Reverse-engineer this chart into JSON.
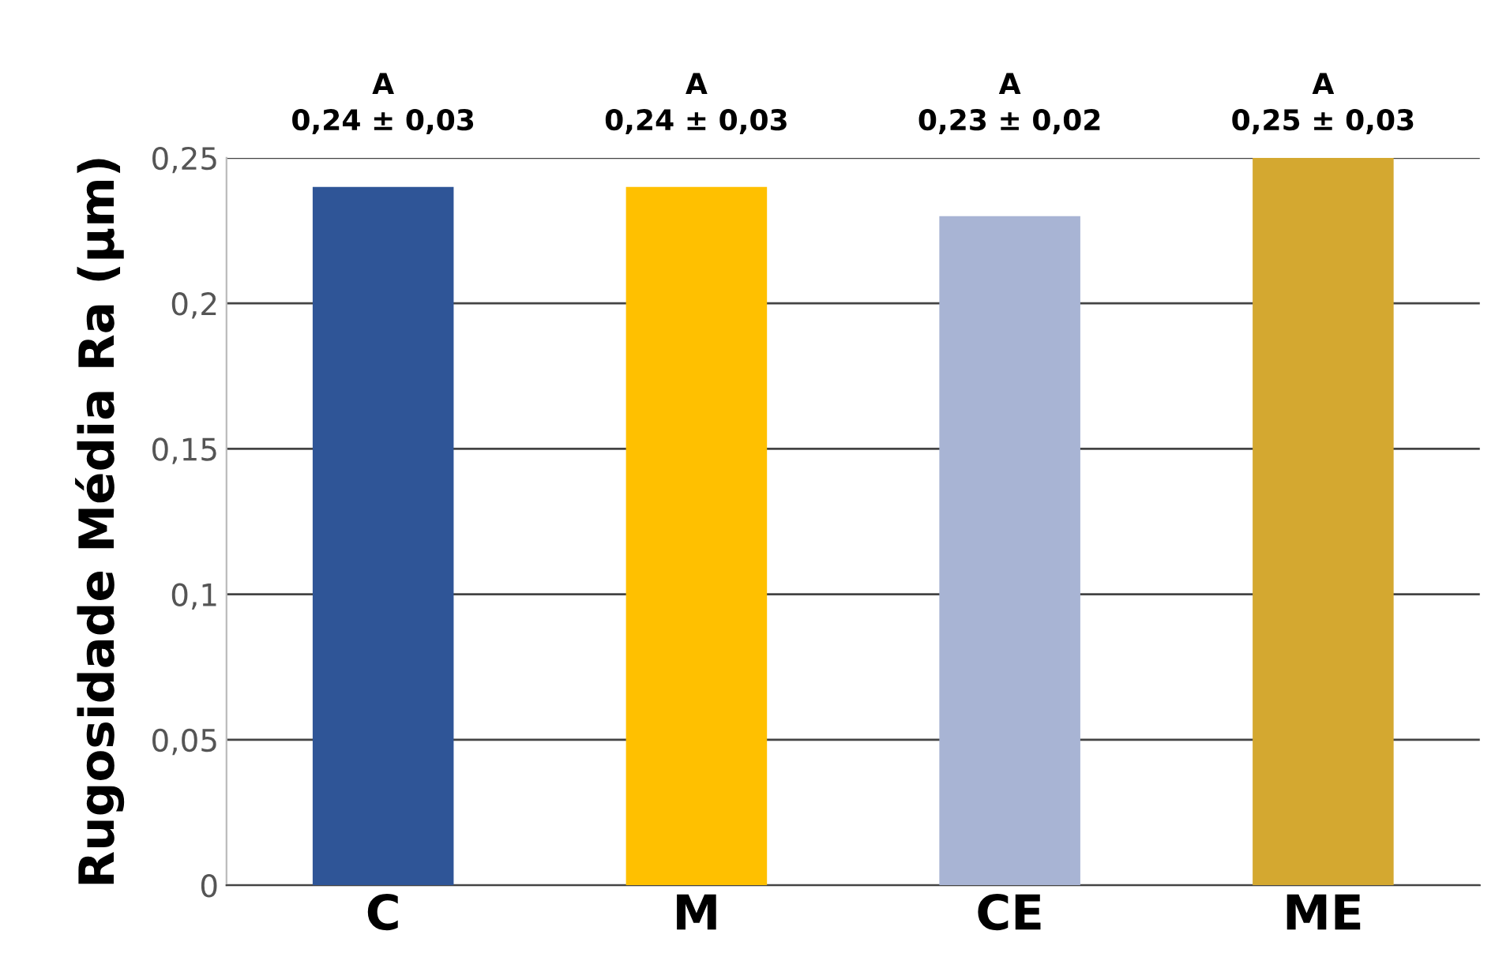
{
  "chart_data": {
    "type": "bar",
    "ylabel": "Rugosidade Média Ra (µm)",
    "categories": [
      "C",
      "M",
      "CE",
      "ME"
    ],
    "values": [
      0.24,
      0.24,
      0.23,
      0.25
    ],
    "colors": [
      "#2f5597",
      "#ffc000",
      "#a8b4d4",
      "#d4a830"
    ],
    "value_labels": [
      "A\n0,24 ± 0,03",
      "A\n0,24 ± 0,03",
      "A\n0,23 ± 0,02",
      "A\n0,25 ± 0,03"
    ],
    "ylim": [
      0,
      0.25
    ],
    "yticks": [
      0,
      {
        "value": 0.05,
        "label": "0,05"
      },
      {
        "value": 0.1,
        "label": "0,1"
      },
      {
        "value": 0.15,
        "label": "0,15"
      },
      {
        "value": 0.2,
        "label": "0,2"
      },
      {
        "value": 0.25,
        "label": "0,25"
      }
    ],
    "grid": "y",
    "legend": false
  }
}
